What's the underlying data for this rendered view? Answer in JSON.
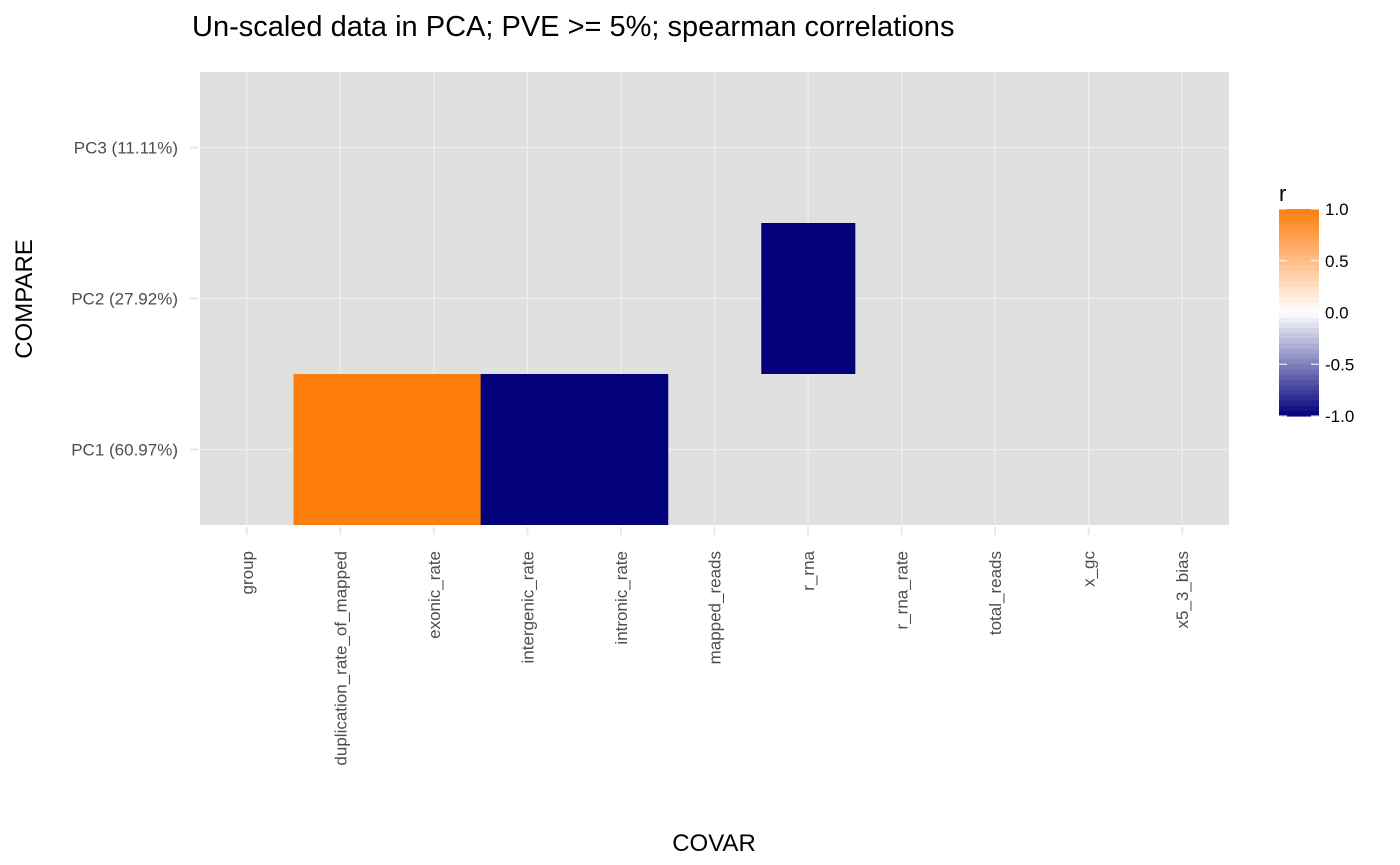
{
  "chart_data": {
    "type": "heatmap",
    "title": "Un-scaled  data in PCA; PVE >= 5%; spearman correlations",
    "xlabel": "COVAR",
    "ylabel": "COMPARE",
    "x_categories": [
      "group",
      "duplication_rate_of_mapped",
      "exonic_rate",
      "intergenic_rate",
      "intronic_rate",
      "mapped_reads",
      "r_rna",
      "r_rna_rate",
      "total_reads",
      "x_gc",
      "x5_3_bias"
    ],
    "y_categories": [
      "PC1 (60.97%)",
      "PC2 (27.92%)",
      "PC3 (11.11%)"
    ],
    "cells": [
      {
        "x": "duplication_rate_of_mapped",
        "y": "PC1 (60.97%)",
        "r": 1.0
      },
      {
        "x": "exonic_rate",
        "y": "PC1 (60.97%)",
        "r": 1.0
      },
      {
        "x": "intergenic_rate",
        "y": "PC1 (60.97%)",
        "r": -1.0
      },
      {
        "x": "intronic_rate",
        "y": "PC1 (60.97%)",
        "r": -1.0
      },
      {
        "x": "r_rna",
        "y": "PC2 (27.92%)",
        "r": -1.0
      }
    ],
    "legend": {
      "title": "r",
      "breaks": [
        "1.0",
        "0.5",
        "0.0",
        "-0.5",
        "-1.0"
      ],
      "limits": [
        -1,
        1
      ],
      "placement": "right"
    },
    "colors": {
      "high": "#fd7d0d",
      "mid": "#ffffff",
      "low": "#02017a",
      "panel_background": "#e0e0e0",
      "grid": "#eeeeee"
    },
    "grid": true
  }
}
